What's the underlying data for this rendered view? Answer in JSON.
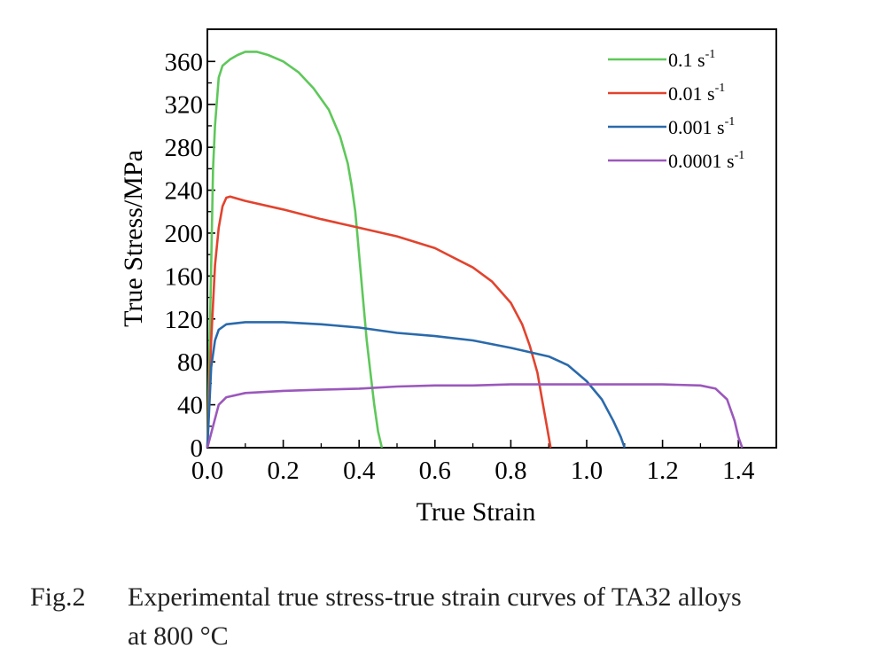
{
  "chart_data": {
    "type": "line",
    "xlabel": "True Strain",
    "ylabel": "True Stress/MPa",
    "xlim": [
      0.0,
      1.5
    ],
    "ylim": [
      0,
      390
    ],
    "xticks": [
      "0.0",
      "0.2",
      "0.4",
      "0.6",
      "0.8",
      "1.0",
      "1.2",
      "1.4"
    ],
    "xtick_values": [
      0.0,
      0.2,
      0.4,
      0.6,
      0.8,
      1.0,
      1.2,
      1.4
    ],
    "yticks": [
      "0",
      "40",
      "80",
      "120",
      "160",
      "200",
      "240",
      "280",
      "320",
      "360"
    ],
    "ytick_values": [
      0,
      40,
      80,
      120,
      160,
      200,
      240,
      280,
      320,
      360
    ],
    "grid": false,
    "legend_position": "top-right",
    "series": [
      {
        "name": "0.1",
        "unit": "s",
        "exponent": "-1",
        "color": "#5ec85a",
        "points": [
          [
            0.0,
            0
          ],
          [
            0.005,
            80
          ],
          [
            0.01,
            170
          ],
          [
            0.015,
            260
          ],
          [
            0.02,
            300
          ],
          [
            0.03,
            345
          ],
          [
            0.04,
            356
          ],
          [
            0.06,
            362
          ],
          [
            0.08,
            366
          ],
          [
            0.1,
            369
          ],
          [
            0.13,
            369
          ],
          [
            0.16,
            366
          ],
          [
            0.2,
            360
          ],
          [
            0.24,
            350
          ],
          [
            0.28,
            335
          ],
          [
            0.32,
            315
          ],
          [
            0.35,
            290
          ],
          [
            0.37,
            265
          ],
          [
            0.38,
            245
          ],
          [
            0.39,
            220
          ],
          [
            0.395,
            200
          ],
          [
            0.4,
            180
          ],
          [
            0.41,
            140
          ],
          [
            0.42,
            100
          ],
          [
            0.43,
            70
          ],
          [
            0.44,
            40
          ],
          [
            0.45,
            15
          ],
          [
            0.46,
            0
          ]
        ]
      },
      {
        "name": "0.01",
        "unit": "s",
        "exponent": "-1",
        "color": "#e2432e",
        "points": [
          [
            0.0,
            0
          ],
          [
            0.01,
            100
          ],
          [
            0.02,
            170
          ],
          [
            0.03,
            205
          ],
          [
            0.04,
            225
          ],
          [
            0.05,
            233
          ],
          [
            0.06,
            234
          ],
          [
            0.1,
            230
          ],
          [
            0.2,
            222
          ],
          [
            0.3,
            213
          ],
          [
            0.4,
            205
          ],
          [
            0.5,
            197
          ],
          [
            0.6,
            186
          ],
          [
            0.7,
            168
          ],
          [
            0.75,
            155
          ],
          [
            0.8,
            135
          ],
          [
            0.83,
            115
          ],
          [
            0.85,
            95
          ],
          [
            0.87,
            70
          ],
          [
            0.88,
            50
          ],
          [
            0.89,
            30
          ],
          [
            0.9,
            10
          ],
          [
            0.905,
            0
          ]
        ]
      },
      {
        "name": "0.001",
        "unit": "s",
        "exponent": "-1",
        "color": "#2a6aab",
        "points": [
          [
            0.0,
            0
          ],
          [
            0.01,
            75
          ],
          [
            0.02,
            100
          ],
          [
            0.03,
            110
          ],
          [
            0.05,
            115
          ],
          [
            0.1,
            117
          ],
          [
            0.2,
            117
          ],
          [
            0.3,
            115
          ],
          [
            0.4,
            112
          ],
          [
            0.5,
            107
          ],
          [
            0.6,
            104
          ],
          [
            0.7,
            100
          ],
          [
            0.8,
            93
          ],
          [
            0.9,
            85
          ],
          [
            0.95,
            77
          ],
          [
            1.0,
            62
          ],
          [
            1.04,
            45
          ],
          [
            1.07,
            25
          ],
          [
            1.09,
            10
          ],
          [
            1.1,
            0
          ]
        ]
      },
      {
        "name": "0.0001",
        "unit": "s",
        "exponent": "-1",
        "color": "#9b58bc",
        "points": [
          [
            0.0,
            0
          ],
          [
            0.03,
            40
          ],
          [
            0.05,
            47
          ],
          [
            0.1,
            51
          ],
          [
            0.2,
            53
          ],
          [
            0.3,
            54
          ],
          [
            0.4,
            55
          ],
          [
            0.5,
            57
          ],
          [
            0.6,
            58
          ],
          [
            0.7,
            58
          ],
          [
            0.8,
            59
          ],
          [
            0.9,
            59
          ],
          [
            1.0,
            59
          ],
          [
            1.1,
            59
          ],
          [
            1.2,
            59
          ],
          [
            1.3,
            58
          ],
          [
            1.34,
            55
          ],
          [
            1.37,
            45
          ],
          [
            1.39,
            25
          ],
          [
            1.4,
            10
          ],
          [
            1.41,
            0
          ]
        ]
      }
    ]
  },
  "caption": {
    "figure_label": "Fig.2",
    "line1": "Experimental true stress-true  strain curves of TA32 alloys",
    "line2": "at 800 °C"
  }
}
